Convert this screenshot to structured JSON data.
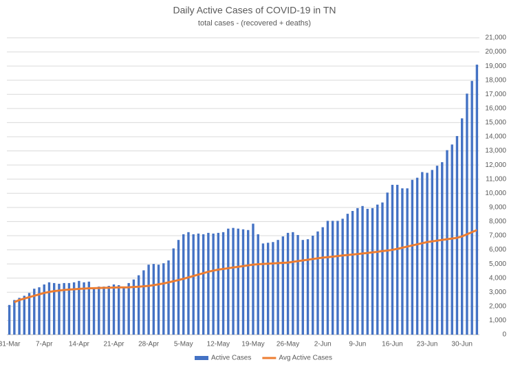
{
  "chart_data": {
    "type": "bar-line",
    "title": "Daily Active Cases of COVID-19 in TN",
    "subtitle": "total cases - (recovered + deaths)",
    "categories": [
      "31-Mar",
      null,
      null,
      null,
      null,
      null,
      null,
      "7-Apr",
      null,
      null,
      null,
      null,
      null,
      null,
      "14-Apr",
      null,
      null,
      null,
      null,
      null,
      null,
      "21-Apr",
      null,
      null,
      null,
      null,
      null,
      null,
      "28-Apr",
      null,
      null,
      null,
      null,
      null,
      null,
      "5-May",
      null,
      null,
      null,
      null,
      null,
      null,
      "12-May",
      null,
      null,
      null,
      null,
      null,
      null,
      "19-May",
      null,
      null,
      null,
      null,
      null,
      null,
      "26-May",
      null,
      null,
      null,
      null,
      null,
      null,
      "2-Jun",
      null,
      null,
      null,
      null,
      null,
      null,
      "9-Jun",
      null,
      null,
      null,
      null,
      null,
      null,
      "16-Jun",
      null,
      null,
      null,
      null,
      null,
      null,
      "23-Jun",
      null,
      null,
      null,
      null,
      null,
      null,
      "30-Jun",
      null,
      null,
      null
    ],
    "series": [
      {
        "name": "Active Cases",
        "type": "bar",
        "color": "#4472c4",
        "values": [
          2100,
          2450,
          2600,
          2750,
          2950,
          3250,
          3350,
          3550,
          3700,
          3650,
          3600,
          3650,
          3650,
          3700,
          3800,
          3700,
          3750,
          3350,
          3400,
          3400,
          3450,
          3550,
          3500,
          3400,
          3650,
          3900,
          4200,
          4550,
          4950,
          5000,
          4950,
          5050,
          5250,
          6100,
          6700,
          7100,
          7250,
          7100,
          7150,
          7100,
          7200,
          7150,
          7200,
          7250,
          7500,
          7550,
          7500,
          7450,
          7400,
          7850,
          7100,
          6450,
          6500,
          6550,
          6700,
          6950,
          7200,
          7250,
          7050,
          6700,
          6750,
          7000,
          7300,
          7600,
          8050,
          8050,
          8050,
          8200,
          8550,
          8750,
          8950,
          9100,
          8900,
          8950,
          9200,
          9350,
          10050,
          10600,
          10600,
          10350,
          10350,
          10950,
          11100,
          11500,
          11450,
          11650,
          11950,
          12200,
          13050,
          13450,
          14050,
          15300,
          17050,
          17950,
          19100
        ]
      },
      {
        "name": "Avg Active Cases",
        "type": "line",
        "color": "#ed7d31",
        "values": [
          null,
          2300,
          2450,
          2550,
          2650,
          2750,
          2850,
          2950,
          3020,
          3080,
          3120,
          3160,
          3190,
          3210,
          3240,
          3260,
          3280,
          3290,
          3300,
          3310,
          3320,
          3330,
          3340,
          3340,
          3350,
          3370,
          3390,
          3420,
          3450,
          3500,
          3560,
          3620,
          3700,
          3780,
          3860,
          3950,
          4050,
          4150,
          4250,
          4350,
          4450,
          4530,
          4600,
          4650,
          4700,
          4750,
          4800,
          4850,
          4900,
          4950,
          4980,
          5000,
          5020,
          5040,
          5060,
          5080,
          5100,
          5150,
          5200,
          5250,
          5300,
          5350,
          5400,
          5450,
          5480,
          5520,
          5560,
          5600,
          5630,
          5670,
          5700,
          5740,
          5780,
          5820,
          5860,
          5910,
          5950,
          6000,
          6070,
          6150,
          6230,
          6310,
          6390,
          6470,
          6550,
          6600,
          6650,
          6700,
          6750,
          6800,
          6850,
          6950,
          7100,
          7250,
          7400
        ]
      }
    ],
    "ylim": [
      0,
      21000
    ],
    "yticks": [
      0,
      {
        "value": 1000,
        "label": "1,000"
      },
      {
        "value": 2000,
        "label": "2,000"
      },
      {
        "value": 3000,
        "label": "3,000"
      },
      {
        "value": 4000,
        "label": "4,000"
      },
      {
        "value": 5000,
        "label": "5,000"
      },
      {
        "value": 6000,
        "label": "6,000"
      },
      {
        "value": 7000,
        "label": "7,000"
      },
      {
        "value": 8000,
        "label": "8,000"
      },
      {
        "value": 9000,
        "label": "9,000"
      },
      {
        "value": 10000,
        "label": "10,000"
      },
      {
        "value": 11000,
        "label": "11,000"
      },
      {
        "value": 12000,
        "label": "12,000"
      },
      {
        "value": 13000,
        "label": "13,000"
      },
      {
        "value": 14000,
        "label": "14,000"
      },
      {
        "value": 15000,
        "label": "15,000"
      },
      {
        "value": 16000,
        "label": "16,000"
      },
      {
        "value": 17000,
        "label": "17,000"
      },
      {
        "value": 18000,
        "label": "18,000"
      },
      {
        "value": 19000,
        "label": "19,000"
      },
      {
        "value": 20000,
        "label": "20,000"
      },
      {
        "value": 21000,
        "label": "21,000"
      }
    ],
    "grid": true,
    "legend": "bottom"
  }
}
